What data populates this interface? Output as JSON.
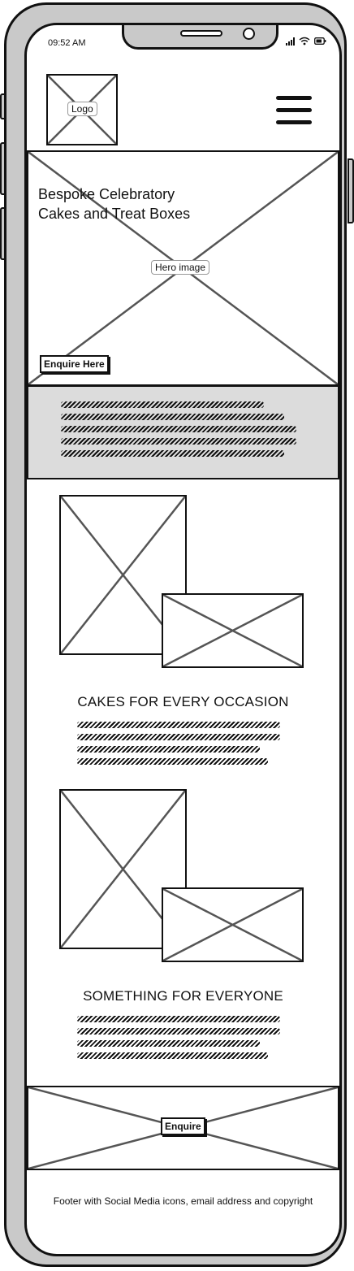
{
  "status_bar": {
    "time": "09:52 AM"
  },
  "header": {
    "logo_label": "Logo",
    "menu_icon": "hamburger-menu-icon"
  },
  "hero": {
    "image_label": "Hero image",
    "title_line1": "Bespoke Celebratory",
    "title_line2": "Cakes and Treat Boxes",
    "cta_label": "Enquire Here"
  },
  "sections": [
    {
      "title": "CAKES FOR EVERY OCCASION"
    },
    {
      "title": "SOMETHING FOR EVERYONE"
    }
  ],
  "banner": {
    "cta_label": "Enquire"
  },
  "footer": {
    "text": "Footer with Social Media icons, email address and copyright"
  },
  "colors": {
    "frame": "#c9c9c9",
    "band": "#dcdcdc",
    "ink": "#111111"
  }
}
